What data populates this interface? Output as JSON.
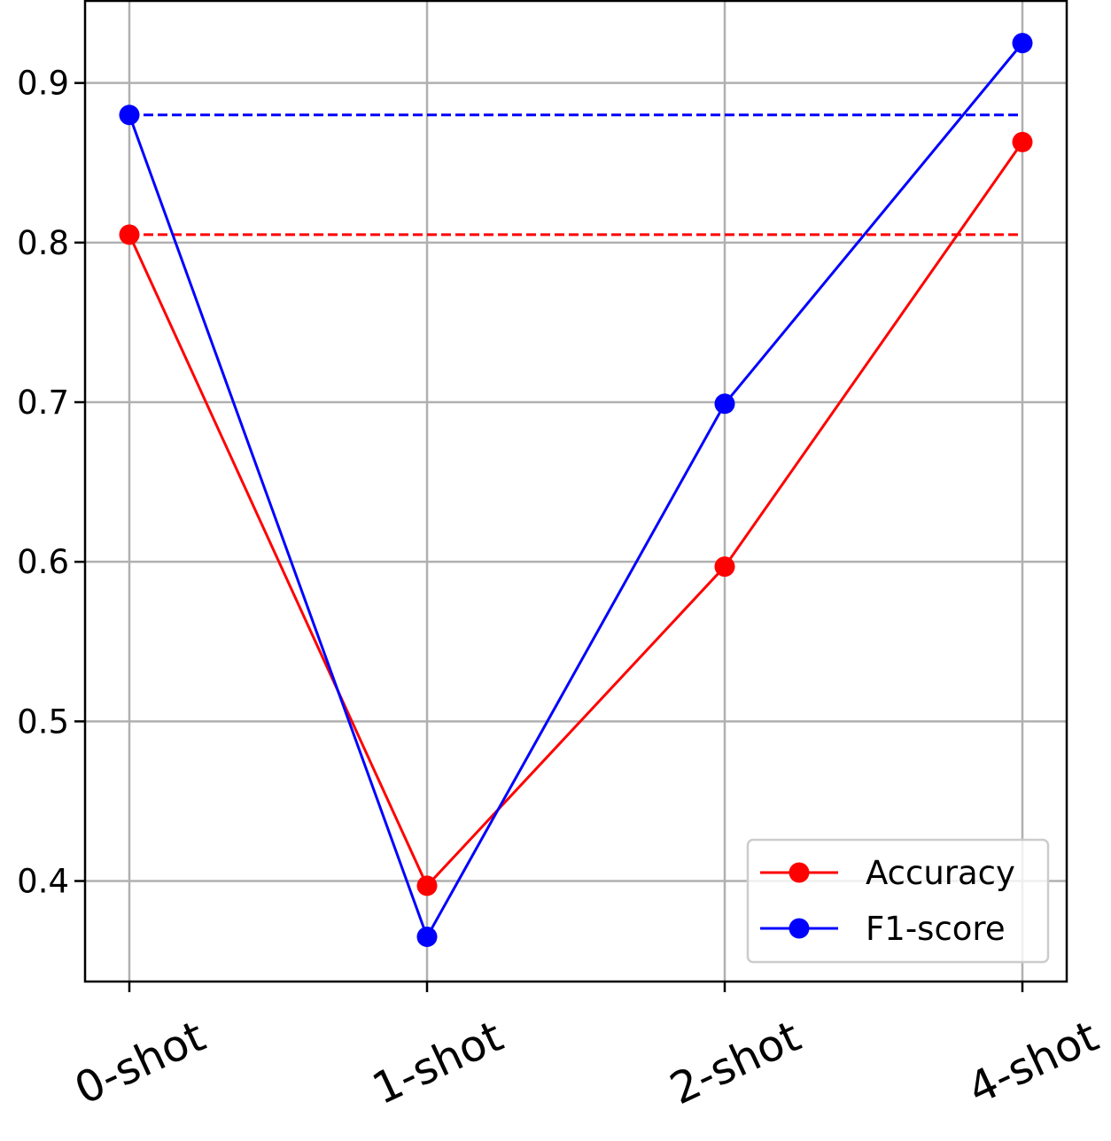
{
  "chart_data": {
    "type": "line",
    "categories": [
      "0-shot",
      "1-shot",
      "2-shot",
      "4-shot"
    ],
    "series": [
      {
        "name": "Accuracy",
        "color": "#ff0000",
        "values": [
          0.805,
          0.397,
          0.597,
          0.863
        ]
      },
      {
        "name": "F1-score",
        "color": "#0000ff",
        "values": [
          0.88,
          0.365,
          0.699,
          0.925
        ]
      }
    ],
    "reference_lines": [
      {
        "color": "#0000ff",
        "style": "dashed",
        "value": 0.88
      },
      {
        "color": "#ff0000",
        "style": "dashed",
        "value": 0.805
      }
    ],
    "yticks": [
      0.4,
      0.5,
      0.6,
      0.7,
      0.8,
      0.9
    ],
    "ytick_labels": [
      "0.4",
      "0.5",
      "0.6",
      "0.7",
      "0.8",
      "0.9"
    ],
    "ylim": [
      0.337,
      0.952
    ],
    "grid": true,
    "legend_position": "lower-right",
    "title": "",
    "xlabel": "",
    "ylabel": ""
  }
}
